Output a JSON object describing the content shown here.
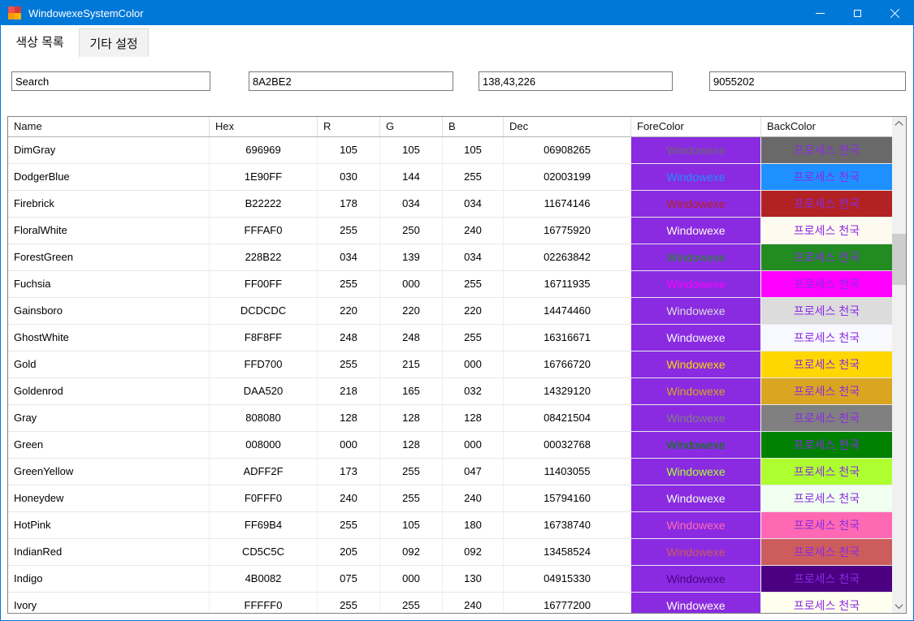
{
  "window": {
    "title": "WindowexeSystemColor",
    "titlebar_color": "#0078D7"
  },
  "app_icon": {
    "name": "color-palette-icon",
    "colors": [
      "#ef5350",
      "#d63a3a",
      "#ff9800",
      "#ffb300"
    ]
  },
  "tabs": [
    {
      "label": "색상 목록",
      "active": true
    },
    {
      "label": "기타 설정",
      "active": false
    }
  ],
  "search": {
    "fields": [
      {
        "value": "Search"
      },
      {
        "value": "8A2BE2"
      },
      {
        "value": "138,43,226"
      },
      {
        "value": "9055202"
      }
    ]
  },
  "table": {
    "columns": [
      "Name",
      "Hex",
      "R",
      "G",
      "B",
      "Dec",
      "ForeColor",
      "BackColor"
    ],
    "accent": "#8A2BE2",
    "fore_label": "Windowexe",
    "back_label": "프로세스 천국",
    "rows": [
      {
        "name": "DimGray",
        "hex": "696969",
        "r": "105",
        "g": "105",
        "b": "105",
        "dec": "06908265",
        "color": "#696969"
      },
      {
        "name": "DodgerBlue",
        "hex": "1E90FF",
        "r": "030",
        "g": "144",
        "b": "255",
        "dec": "02003199",
        "color": "#1E90FF"
      },
      {
        "name": "Firebrick",
        "hex": "B22222",
        "r": "178",
        "g": "034",
        "b": "034",
        "dec": "11674146",
        "color": "#B22222"
      },
      {
        "name": "FloralWhite",
        "hex": "FFFAF0",
        "r": "255",
        "g": "250",
        "b": "240",
        "dec": "16775920",
        "color": "#FFFAF0"
      },
      {
        "name": "ForestGreen",
        "hex": "228B22",
        "r": "034",
        "g": "139",
        "b": "034",
        "dec": "02263842",
        "color": "#228B22"
      },
      {
        "name": "Fuchsia",
        "hex": "FF00FF",
        "r": "255",
        "g": "000",
        "b": "255",
        "dec": "16711935",
        "color": "#FF00FF"
      },
      {
        "name": "Gainsboro",
        "hex": "DCDCDC",
        "r": "220",
        "g": "220",
        "b": "220",
        "dec": "14474460",
        "color": "#DCDCDC"
      },
      {
        "name": "GhostWhite",
        "hex": "F8F8FF",
        "r": "248",
        "g": "248",
        "b": "255",
        "dec": "16316671",
        "color": "#F8F8FF"
      },
      {
        "name": "Gold",
        "hex": "FFD700",
        "r": "255",
        "g": "215",
        "b": "000",
        "dec": "16766720",
        "color": "#FFD700"
      },
      {
        "name": "Goldenrod",
        "hex": "DAA520",
        "r": "218",
        "g": "165",
        "b": "032",
        "dec": "14329120",
        "color": "#DAA520"
      },
      {
        "name": "Gray",
        "hex": "808080",
        "r": "128",
        "g": "128",
        "b": "128",
        "dec": "08421504",
        "color": "#808080"
      },
      {
        "name": "Green",
        "hex": "008000",
        "r": "000",
        "g": "128",
        "b": "000",
        "dec": "00032768",
        "color": "#008000"
      },
      {
        "name": "GreenYellow",
        "hex": "ADFF2F",
        "r": "173",
        "g": "255",
        "b": "047",
        "dec": "11403055",
        "color": "#ADFF2F"
      },
      {
        "name": "Honeydew",
        "hex": "F0FFF0",
        "r": "240",
        "g": "255",
        "b": "240",
        "dec": "15794160",
        "color": "#F0FFF0"
      },
      {
        "name": "HotPink",
        "hex": "FF69B4",
        "r": "255",
        "g": "105",
        "b": "180",
        "dec": "16738740",
        "color": "#FF69B4"
      },
      {
        "name": "IndianRed",
        "hex": "CD5C5C",
        "r": "205",
        "g": "092",
        "b": "092",
        "dec": "13458524",
        "color": "#CD5C5C"
      },
      {
        "name": "Indigo",
        "hex": "4B0082",
        "r": "075",
        "g": "000",
        "b": "130",
        "dec": "04915330",
        "color": "#4B0082"
      },
      {
        "name": "Ivory",
        "hex": "FFFFF0",
        "r": "255",
        "g": "255",
        "b": "240",
        "dec": "16777200",
        "color": "#FFFFF0"
      }
    ]
  }
}
